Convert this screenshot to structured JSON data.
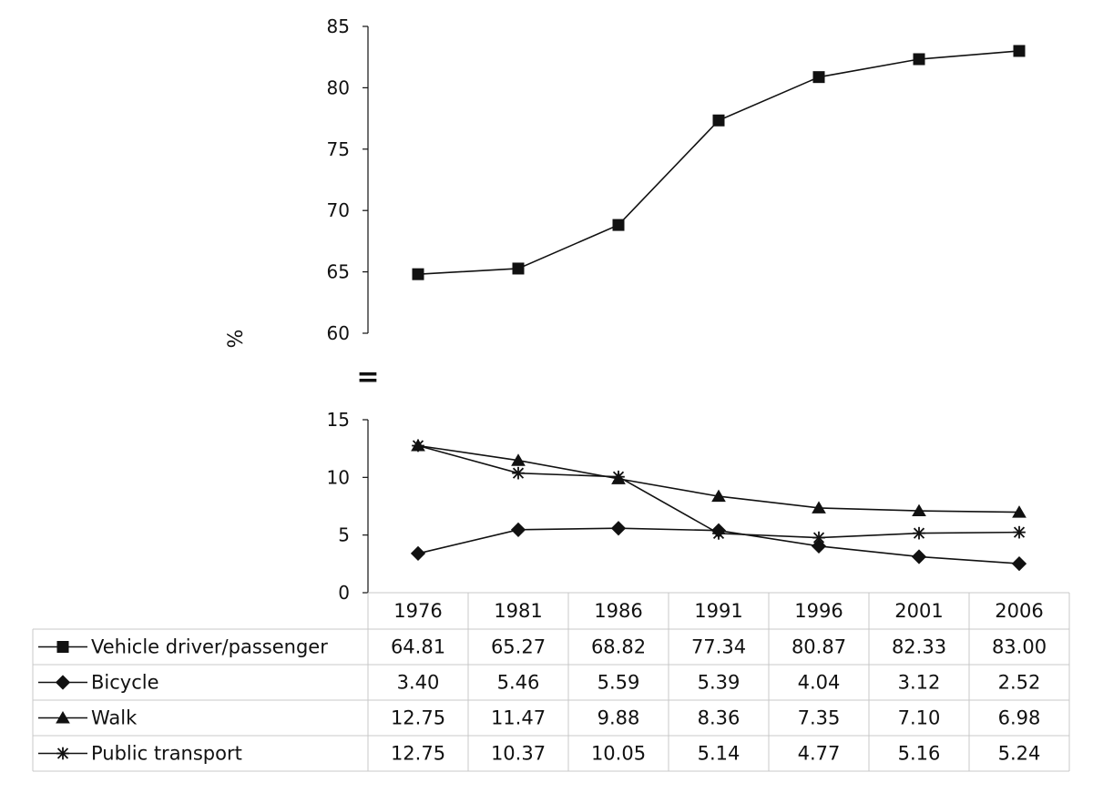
{
  "chart_data": {
    "type": "line",
    "ylabel": "%",
    "categories": [
      "1976",
      "1981",
      "1986",
      "1991",
      "1996",
      "2001",
      "2006"
    ],
    "axis_break": true,
    "upper_panel": {
      "ylim": [
        60,
        85
      ],
      "yticks": [
        "60",
        "65",
        "70",
        "75",
        "80",
        "85"
      ]
    },
    "lower_panel": {
      "ylim": [
        0,
        15
      ],
      "yticks": [
        "0",
        "5",
        "10",
        "15"
      ]
    },
    "series": [
      {
        "name": "Vehicle driver/passenger",
        "marker": "square",
        "panel": "upper",
        "values": [
          64.81,
          65.27,
          68.82,
          77.34,
          80.87,
          82.33,
          83.0
        ],
        "labels": [
          "64.81",
          "65.27",
          "68.82",
          "77.34",
          "80.87",
          "82.33",
          "83.00"
        ]
      },
      {
        "name": "Bicycle",
        "marker": "diamond",
        "panel": "lower",
        "values": [
          3.4,
          5.46,
          5.59,
          5.39,
          4.04,
          3.12,
          2.52
        ],
        "labels": [
          "3.40",
          "5.46",
          "5.59",
          "5.39",
          "4.04",
          "3.12",
          "2.52"
        ]
      },
      {
        "name": "Walk",
        "marker": "triangle",
        "panel": "lower",
        "values": [
          12.75,
          11.47,
          9.88,
          8.36,
          7.35,
          7.1,
          6.98
        ],
        "labels": [
          "12.75",
          "11.47",
          "9.88",
          "8.36",
          "7.35",
          "7.10",
          "6.98"
        ]
      },
      {
        "name": "Public transport",
        "marker": "asterisk",
        "panel": "lower",
        "values": [
          12.75,
          10.37,
          10.05,
          5.14,
          4.77,
          5.16,
          5.24
        ],
        "labels": [
          "12.75",
          "10.37",
          "10.05",
          "5.14",
          "4.77",
          "5.16",
          "5.24"
        ]
      }
    ],
    "break_symbol": "=",
    "colors": {
      "ink": "#111111",
      "grid": "#c8c8c8",
      "background": "#ffffff"
    }
  }
}
